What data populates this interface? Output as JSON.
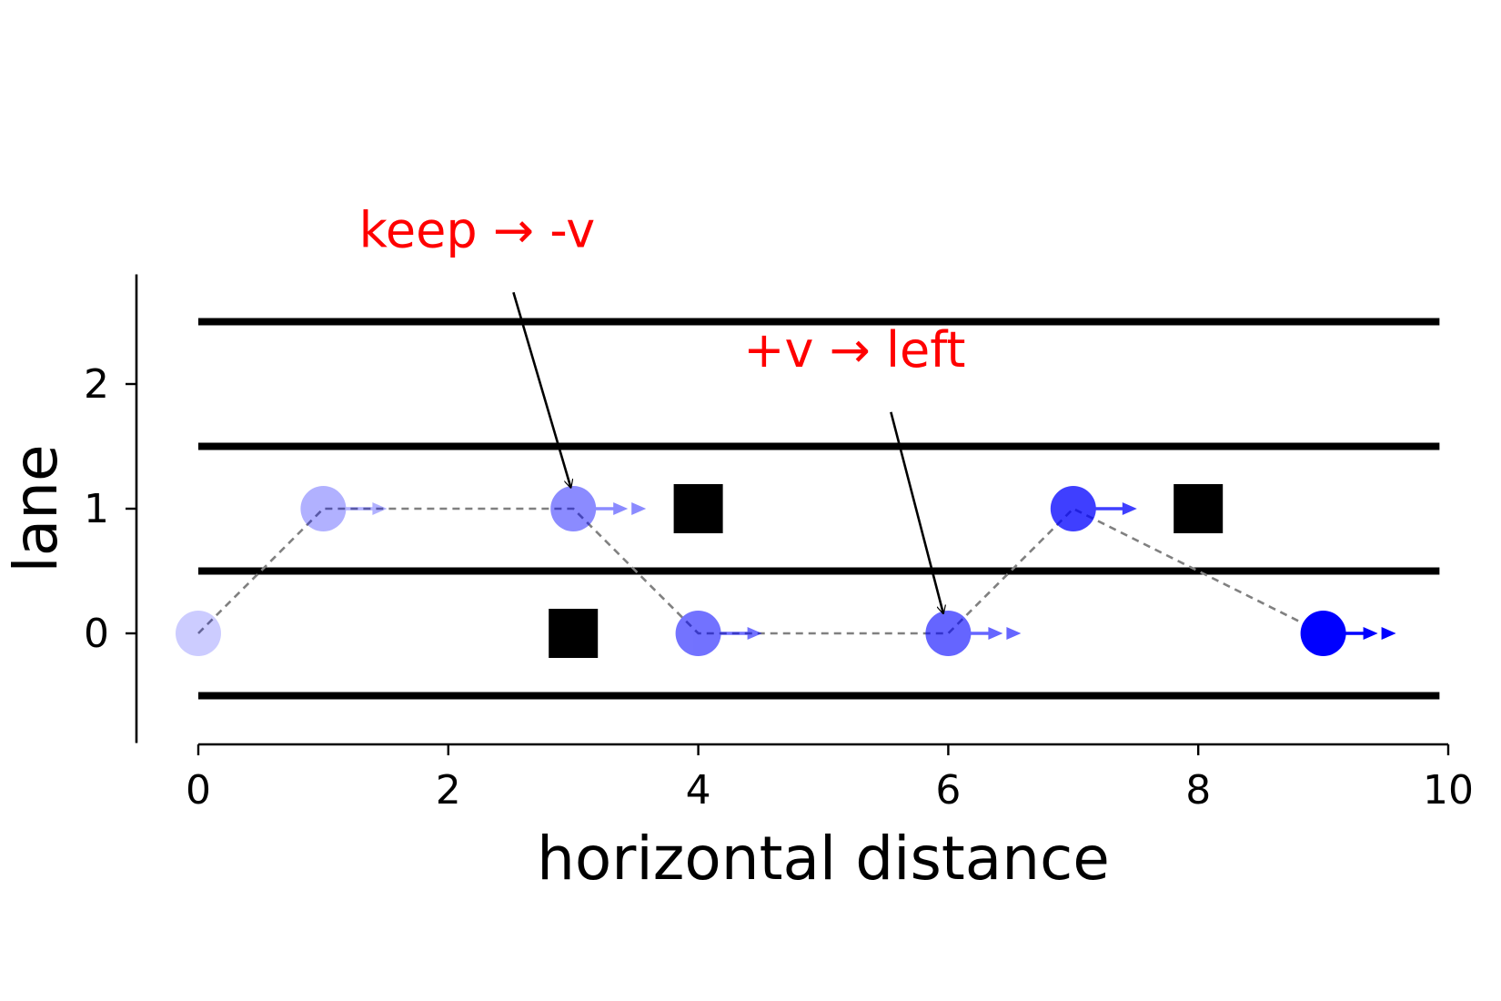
{
  "chart_data": {
    "type": "scatter",
    "title": "",
    "xlabel": "horizontal distance",
    "ylabel": "lane",
    "xlim": [
      -0.5,
      10
    ],
    "ylim": [
      -0.9,
      2.9
    ],
    "xticks": [
      0,
      2,
      4,
      6,
      8,
      10
    ],
    "yticks": [
      0,
      1,
      2
    ],
    "grid": false,
    "lane_lines": [
      -0.5,
      0.5,
      1.5,
      2.5
    ],
    "lane_line_xrange": [
      0,
      9.93
    ],
    "path": [
      {
        "x": 0,
        "y": 0,
        "speed": 0,
        "alpha": 0.2
      },
      {
        "x": 1,
        "y": 1,
        "speed": 1,
        "alpha": 0.3
      },
      {
        "x": 3,
        "y": 1,
        "speed": 2,
        "alpha": 0.45
      },
      {
        "x": 4,
        "y": 0,
        "speed": 1,
        "alpha": 0.55
      },
      {
        "x": 6,
        "y": 0,
        "speed": 2,
        "alpha": 0.6
      },
      {
        "x": 7,
        "y": 1,
        "speed": 1,
        "alpha": 0.75
      },
      {
        "x": 9,
        "y": 0,
        "speed": 2,
        "alpha": 1.0
      }
    ],
    "obstacles": [
      {
        "x": 3,
        "y": 0
      },
      {
        "x": 4,
        "y": 1
      },
      {
        "x": 8,
        "y": 1
      }
    ],
    "annotations": [
      {
        "text": "keep → -v",
        "text_x": 2.23,
        "text_y": 3.1,
        "target_x": 2.98,
        "target_y": 1.17
      },
      {
        "text": "+v → left",
        "text_x": 5.25,
        "text_y": 2.14,
        "target_x": 5.96,
        "target_y": 0.16
      }
    ],
    "colors": {
      "agent": "#0000ff",
      "obstacle": "#000000",
      "lane_line": "#000000",
      "path_line": "#808080",
      "annotation": "#ff0000",
      "arrow": "#000000"
    }
  }
}
